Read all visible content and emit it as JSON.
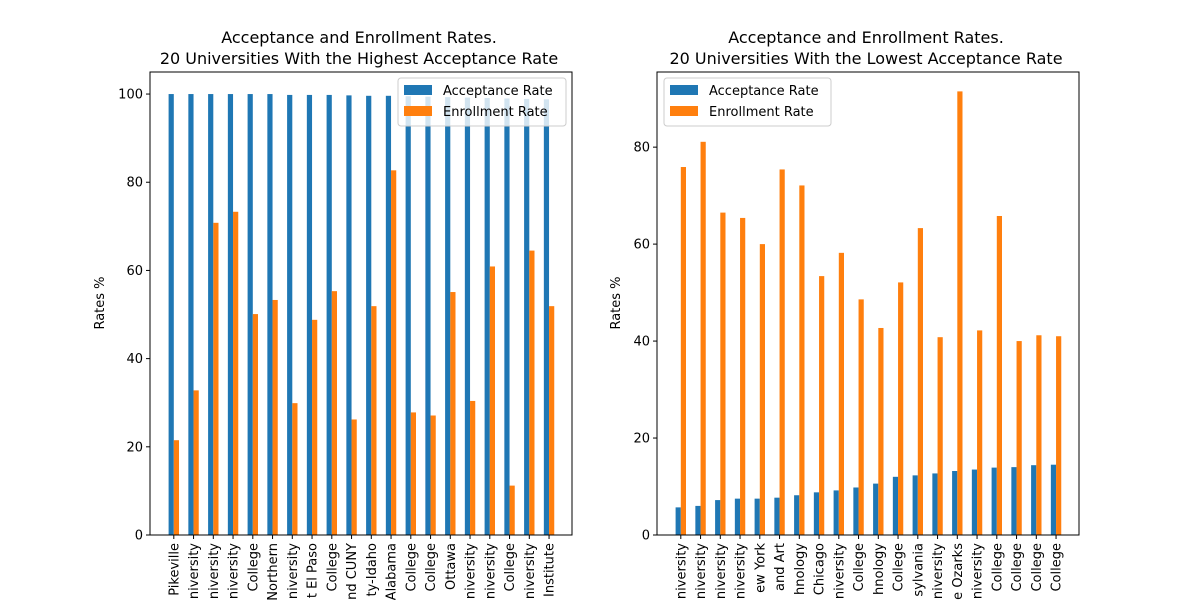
{
  "colors": {
    "acceptance": "#1f77b4",
    "enrollment": "#ff7f0e"
  },
  "chart_data": [
    {
      "type": "bar",
      "title_line1": "Acceptance and Enrollment Rates.",
      "title_line2": "20 Universities With the Highest Acceptance Rate",
      "ylabel": "Rates %",
      "ylim": [
        0,
        105
      ],
      "yticks": [
        0,
        20,
        40,
        60,
        80,
        100
      ],
      "legend_position": "upper right",
      "categories": [
        "Pikeville",
        "niversity",
        "niversity",
        "niversity",
        "College",
        "Northern",
        "niversity",
        "t El Paso",
        "College",
        "nd CUNY",
        "ty-Idaho",
        "Alabama",
        "College",
        "College",
        "Ottawa",
        "niversity",
        "niversity",
        "College",
        "niversity",
        "Institute"
      ],
      "series": [
        {
          "name": "Acceptance Rate",
          "values": [
            100,
            100,
            100,
            100,
            100,
            100,
            99.8,
            99.8,
            99.8,
            99.7,
            99.6,
            99.6,
            99.5,
            99.4,
            99.3,
            99.2,
            99.1,
            99.0,
            98.9,
            98.8
          ]
        },
        {
          "name": "Enrollment Rate",
          "values": [
            21.5,
            32.8,
            70.8,
            73.3,
            50.1,
            53.3,
            29.9,
            48.8,
            55.3,
            26.2,
            51.9,
            82.7,
            27.8,
            27.1,
            55.1,
            30.4,
            60.9,
            11.2,
            64.5,
            51.9
          ]
        }
      ]
    },
    {
      "type": "bar",
      "title_line1": "Acceptance and Enrollment Rates.",
      "title_line2": "20 Universities With the Lowest Acceptance Rate",
      "ylabel": "Rates %",
      "ylim": [
        0,
        95.5
      ],
      "yticks": [
        0,
        20,
        40,
        60,
        80
      ],
      "legend_position": "upper left",
      "categories": [
        "niversity",
        "niversity",
        "niversity",
        "niversity",
        "ew York",
        "and Art",
        "hnology",
        "Chicago",
        "niversity",
        "College",
        "hnology",
        "College",
        "sylvania",
        "niversity",
        "e Ozarks",
        "niversity",
        "College",
        "College",
        "College",
        "College"
      ],
      "series": [
        {
          "name": "Acceptance Rate",
          "values": [
            5.7,
            6.0,
            7.2,
            7.5,
            7.5,
            7.7,
            8.2,
            8.8,
            9.2,
            9.8,
            10.6,
            12.0,
            12.3,
            12.7,
            13.2,
            13.5,
            13.9,
            14.0,
            14.4,
            14.5
          ]
        },
        {
          "name": "Enrollment Rate",
          "values": [
            75.9,
            81.1,
            66.5,
            65.4,
            60.0,
            75.4,
            72.1,
            53.4,
            58.2,
            48.6,
            42.7,
            52.1,
            63.3,
            40.8,
            91.5,
            42.2,
            65.8,
            40.0,
            41.2,
            41.0
          ]
        }
      ]
    }
  ]
}
